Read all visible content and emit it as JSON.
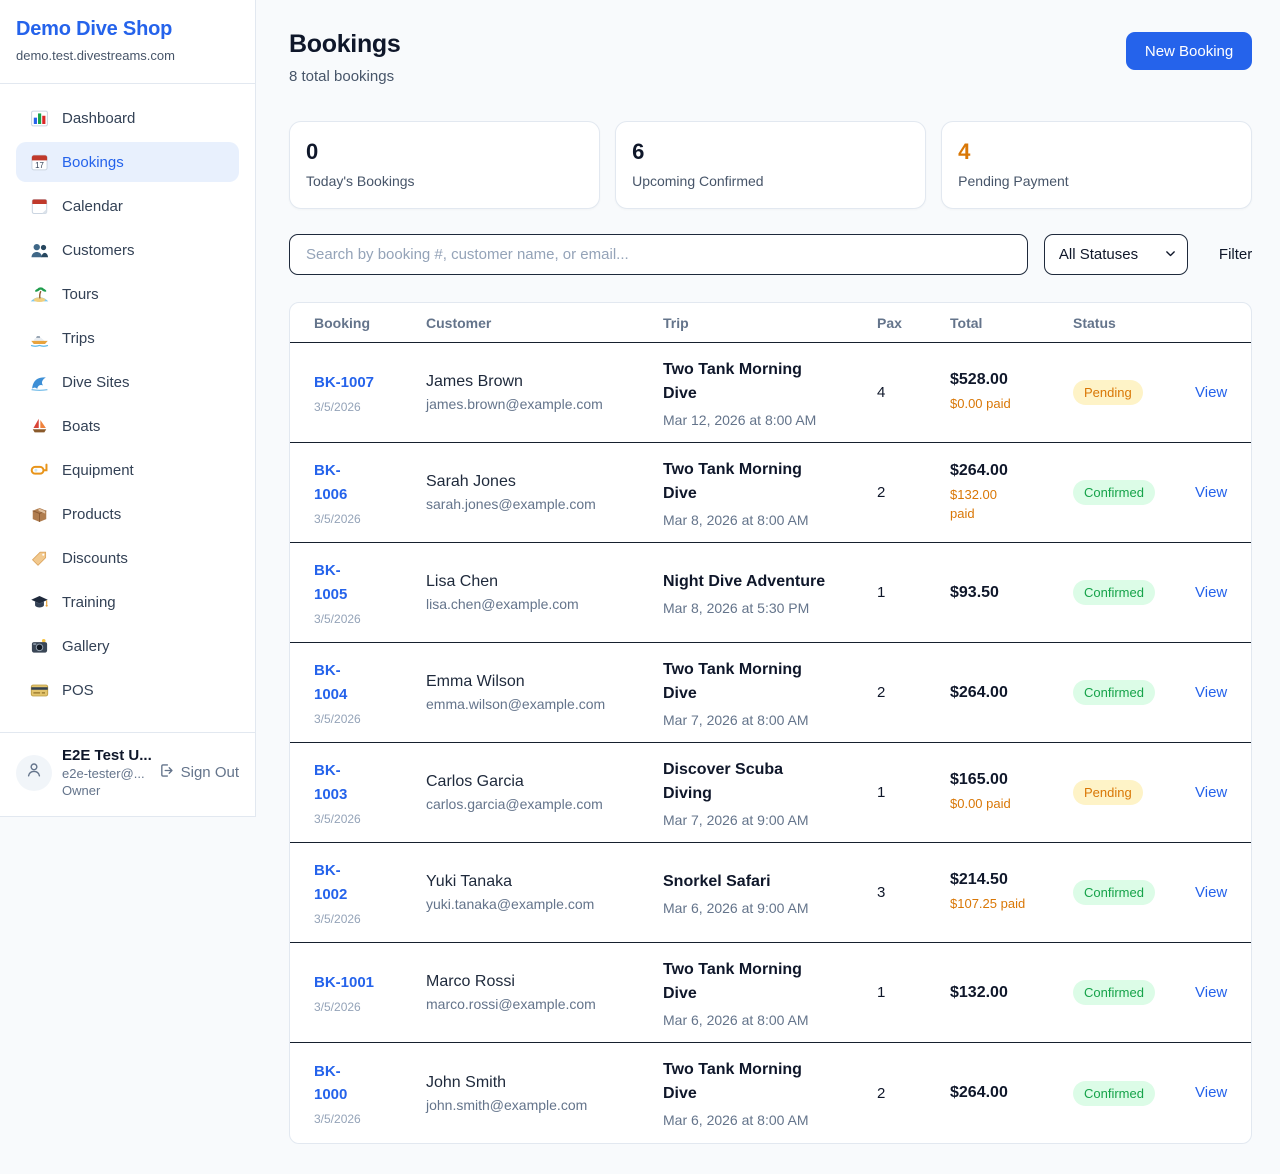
{
  "page": {
    "background": "#f8fafc",
    "accent_blue": "#2563eb",
    "row_border": "#16202e"
  },
  "sidebar": {
    "title": "Demo Dive Shop",
    "domain": "demo.test.divestreams.com",
    "active_item": "Bookings",
    "items": [
      {
        "label": "Dashboard",
        "icon": "bar-chart-icon"
      },
      {
        "label": "Bookings",
        "icon": "calendar-date-icon"
      },
      {
        "label": "Calendar",
        "icon": "tear-off-calendar-icon"
      },
      {
        "label": "Customers",
        "icon": "people-icon"
      },
      {
        "label": "Tours",
        "icon": "desert-island-icon"
      },
      {
        "label": "Trips",
        "icon": "speedboat-icon"
      },
      {
        "label": "Dive Sites",
        "icon": "water-wave-icon"
      },
      {
        "label": "Boats",
        "icon": "sailboat-icon"
      },
      {
        "label": "Equipment",
        "icon": "diving-mask-icon"
      },
      {
        "label": "Products",
        "icon": "package-icon"
      },
      {
        "label": "Discounts",
        "icon": "label-tag-icon"
      },
      {
        "label": "Training",
        "icon": "graduation-cap-icon"
      },
      {
        "label": "Gallery",
        "icon": "camera-flash-icon"
      },
      {
        "label": "POS",
        "icon": "credit-card-icon"
      }
    ],
    "user": {
      "name": "E2E Test U...",
      "email": "e2e-tester@...",
      "role": "Owner",
      "sign_out_label": "Sign Out"
    }
  },
  "header": {
    "title": "Bookings",
    "subtitle": "8 total bookings",
    "new_booking_label": "New Booking"
  },
  "stats": [
    {
      "value": "0",
      "label": "Today's Bookings"
    },
    {
      "value": "6",
      "label": "Upcoming Confirmed"
    },
    {
      "value": "4",
      "label": "Pending Payment",
      "value_color": "#d97706"
    }
  ],
  "filters": {
    "search_placeholder": "Search by booking #, customer name, or email...",
    "status_selected": "All Statuses",
    "filter_label": "Filter"
  },
  "table": {
    "columns": [
      "Booking",
      "Customer",
      "Trip",
      "Pax",
      "Total",
      "Status"
    ],
    "rows": [
      {
        "id": "BK-1007",
        "date": "3/5/2026",
        "customer": "James Brown",
        "email": "james.brown@example.com",
        "trip": "Two Tank Morning Dive",
        "trip_time": "Mar 12, 2026 at 8:00 AM",
        "pax": "4",
        "total": "$528.00",
        "paid": "$0.00 paid",
        "status": "Pending",
        "action": "View",
        "id_two_lines": false,
        "trip_two_lines": true,
        "paid_two_lines": false
      },
      {
        "id": "BK-1006",
        "date": "3/5/2026",
        "customer": "Sarah Jones",
        "email": "sarah.jones@example.com",
        "trip": "Two Tank Morning Dive",
        "trip_time": "Mar 8, 2026 at 8:00 AM",
        "pax": "2",
        "total": "$264.00",
        "paid": "$132.00 paid",
        "status": "Confirmed",
        "action": "View",
        "id_two_lines": true,
        "trip_two_lines": true,
        "paid_two_lines": true
      },
      {
        "id": "BK-1005",
        "date": "3/5/2026",
        "customer": "Lisa Chen",
        "email": "lisa.chen@example.com",
        "trip": "Night Dive Adventure",
        "trip_time": "Mar 8, 2026 at 5:30 PM",
        "pax": "1",
        "total": "$93.50",
        "paid": null,
        "status": "Confirmed",
        "action": "View",
        "id_two_lines": true,
        "trip_two_lines": false,
        "paid_two_lines": false
      },
      {
        "id": "BK-1004",
        "date": "3/5/2026",
        "customer": "Emma Wilson",
        "email": "emma.wilson@example.com",
        "trip": "Two Tank Morning Dive",
        "trip_time": "Mar 7, 2026 at 8:00 AM",
        "pax": "2",
        "total": "$264.00",
        "paid": null,
        "status": "Confirmed",
        "action": "View",
        "id_two_lines": true,
        "trip_two_lines": true,
        "paid_two_lines": false
      },
      {
        "id": "BK-1003",
        "date": "3/5/2026",
        "customer": "Carlos Garcia",
        "email": "carlos.garcia@example.com",
        "trip": "Discover Scuba Diving",
        "trip_time": "Mar 7, 2026 at 9:00 AM",
        "pax": "1",
        "total": "$165.00",
        "paid": "$0.00 paid",
        "status": "Pending",
        "action": "View",
        "id_two_lines": true,
        "trip_two_lines": true,
        "paid_two_lines": false
      },
      {
        "id": "BK-1002",
        "date": "3/5/2026",
        "customer": "Yuki Tanaka",
        "email": "yuki.tanaka@example.com",
        "trip": "Snorkel Safari",
        "trip_time": "Mar 6, 2026 at 9:00 AM",
        "pax": "3",
        "total": "$214.50",
        "paid": "$107.25 paid",
        "status": "Confirmed",
        "action": "View",
        "id_two_lines": true,
        "trip_two_lines": false,
        "paid_two_lines": false
      },
      {
        "id": "BK-1001",
        "date": "3/5/2026",
        "customer": "Marco Rossi",
        "email": "marco.rossi@example.com",
        "trip": "Two Tank Morning Dive",
        "trip_time": "Mar 6, 2026 at 8:00 AM",
        "pax": "1",
        "total": "$132.00",
        "paid": null,
        "status": "Confirmed",
        "action": "View",
        "id_two_lines": false,
        "trip_two_lines": true,
        "paid_two_lines": false
      },
      {
        "id": "BK-1000",
        "date": "3/5/2026",
        "customer": "John Smith",
        "email": "john.smith@example.com",
        "trip": "Two Tank Morning Dive",
        "trip_time": "Mar 6, 2026 at 8:00 AM",
        "pax": "2",
        "total": "$264.00",
        "paid": null,
        "status": "Confirmed",
        "action": "View",
        "id_two_lines": true,
        "trip_two_lines": true,
        "paid_two_lines": false
      }
    ]
  },
  "status_colors": {
    "pending": {
      "bg": "#fef3c7",
      "text": "#d97706"
    },
    "confirmed": {
      "bg": "#dcfce7",
      "text": "#16a34a"
    }
  }
}
